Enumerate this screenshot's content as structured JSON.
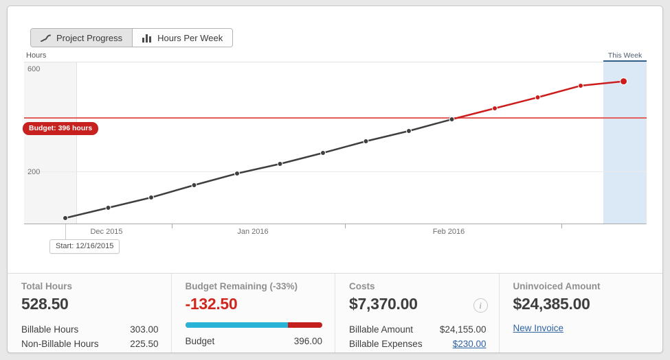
{
  "toolbar": {
    "tabs": [
      {
        "label": "Project Progress",
        "icon": "trend-line-icon",
        "active": true
      },
      {
        "label": "Hours Per Week",
        "icon": "bar-chart-icon",
        "active": false
      }
    ]
  },
  "chart": {
    "axis_title": "Hours",
    "y_labels": [
      "600",
      "200"
    ],
    "x_labels": [
      "Dec 2015",
      "Jan 2016",
      "Feb 2016"
    ],
    "this_week_label": "This Week",
    "budget_badge": "Budget: 396 hours",
    "start_tooltip": "Start: 12/16/2015"
  },
  "chart_data": {
    "type": "line",
    "title": "Project Progress",
    "ylabel": "Hours",
    "ylim": [
      0,
      600
    ],
    "x_unit": "weeks from 12/16/2015",
    "x_axis_labels": [
      "Dec 2015",
      "Jan 2016",
      "Feb 2016"
    ],
    "budget_hours": 396,
    "values": [
      30,
      67.5,
      105,
      150,
      192.5,
      227.5,
      267.5,
      310,
      347.5,
      390,
      430,
      470,
      512.5,
      528.5
    ],
    "split_index": 9,
    "series": [
      {
        "name": "cumulative-hours-under-budget",
        "color": "#3f3f3f"
      },
      {
        "name": "cumulative-hours-over-budget",
        "color": "#cc1c1c"
      }
    ],
    "grid": "horizontal-only",
    "legend": "none",
    "this_week_band": true,
    "band_color": "#dbe9f7",
    "budget_line_color": "#e25e5a"
  },
  "stats": {
    "columns": [
      {
        "label": "Total Hours",
        "big": "528.50",
        "rows": [
          {
            "name": "Billable Hours",
            "value": "303.00"
          },
          {
            "name": "Non-Billable Hours",
            "value": "225.50"
          }
        ]
      },
      {
        "label": "Budget Remaining (-33%)",
        "big": "-132.50",
        "progress": {
          "blue_pct": 74.9
        },
        "rows": [
          {
            "name": "Budget",
            "value": "396.00"
          }
        ]
      },
      {
        "label": "Costs",
        "big": "$7,370.00",
        "info_icon": "i",
        "rows": [
          {
            "name": "Billable Amount",
            "value": "$24,155.00"
          },
          {
            "name": "Billable Expenses",
            "value": "$230.00"
          }
        ]
      },
      {
        "label": "Uninvoiced Amount",
        "big": "$24,385.00",
        "link": "New Invoice"
      }
    ]
  },
  "colors": {
    "accent_red": "#cc1c1c",
    "series_gray": "#3f3f3f",
    "bar_blue": "#29b3d7",
    "bar_red": "#c41f1f",
    "link_blue": "#2e63a4",
    "band_blue": "#dbe9f7",
    "band_top_bar": "#2e5f8d"
  }
}
